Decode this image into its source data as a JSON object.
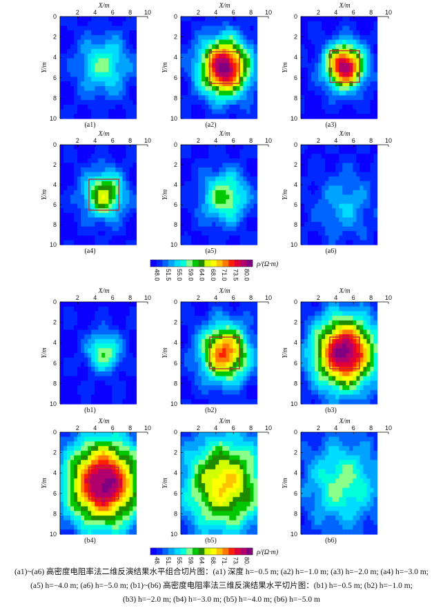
{
  "axis": {
    "x_label": "X/m",
    "y_label": "Y/m",
    "ticks_x": [
      "2",
      "4",
      "6",
      "8",
      "10"
    ],
    "ticks_y": [
      "0",
      "2",
      "4",
      "6",
      "8",
      "10"
    ]
  },
  "colorbar": {
    "label": "ρ/(Ω·m)",
    "tick_labels": [
      "48.0",
      "51.5",
      "55.0",
      "59.0",
      "64.0",
      "68.0",
      "71.0",
      "73.5",
      "80.0"
    ],
    "colors": [
      "#0b00ff",
      "#0028ff",
      "#0064ff",
      "#00a4ff",
      "#00dcff",
      "#00ffd8",
      "#8aff8a",
      "#00c800",
      "#1f8a00",
      "#d2ff00",
      "#ffff00",
      "#ffc400",
      "#ff7a00",
      "#ff2000",
      "#e0003a",
      "#b0006e",
      "#800080"
    ]
  },
  "panels": [
    {
      "label": "(a1)",
      "peak": 0.33,
      "cx": 5.0,
      "cy": 4.8,
      "spread": 2.0,
      "box": false,
      "axes_ticks": true
    },
    {
      "label": "(a2)",
      "peak": 1.0,
      "cx": 5.0,
      "cy": 5.0,
      "spread": 1.9,
      "box": true,
      "axes_ticks": true
    },
    {
      "label": "(a3)",
      "peak": 0.95,
      "cx": 5.0,
      "cy": 4.9,
      "spread": 1.5,
      "box": true,
      "axes_ticks": true
    },
    {
      "label": "(a4)",
      "peak": 0.55,
      "cx": 5.0,
      "cy": 5.0,
      "spread": 1.6,
      "box": true,
      "axes_ticks": true
    },
    {
      "label": "(a5)",
      "peak": 0.42,
      "cx": 5.0,
      "cy": 5.2,
      "spread": 1.8,
      "box": false,
      "axes_ticks": false
    },
    {
      "label": "(a6)",
      "peak": 0.2,
      "cx": 5.0,
      "cy": 6.0,
      "spread": 2.2,
      "box": false,
      "axes_ticks": false
    },
    {
      "label": "(b1)",
      "peak": 0.4,
      "cx": 5.0,
      "cy": 4.9,
      "spread": 1.3,
      "box": false,
      "axes_ticks": true
    },
    {
      "label": "(b2)",
      "peak": 0.78,
      "cx": 5.0,
      "cy": 5.0,
      "spread": 1.9,
      "box": true,
      "axes_ticks": true
    },
    {
      "label": "(b3)",
      "peak": 1.0,
      "cx": 5.0,
      "cy": 5.0,
      "spread": 2.4,
      "box": true,
      "axes_ticks": true
    },
    {
      "label": "(b4)",
      "peak": 1.0,
      "cx": 5.0,
      "cy": 5.0,
      "spread": 2.9,
      "box": true,
      "axes_ticks": true
    },
    {
      "label": "(b5)",
      "peak": 0.65,
      "cx": 5.0,
      "cy": 5.1,
      "spread": 3.2,
      "box": false,
      "axes_ticks": true
    },
    {
      "label": "(b6)",
      "peak": 0.35,
      "cx": 4.8,
      "cy": 5.0,
      "spread": 3.0,
      "box": false,
      "axes_ticks": true
    }
  ],
  "caption_lines": [
    "(a1)~(a6) 高密度电阻率法二维反演结果水平组合切片图：(a1) 深度 h=−0.5 m; (a2) h=−1.0 m; (a3) h=−2.0 m; (a4) h=−3.0 m;",
    "(a5) h=−4.0 m; (a6) h=−5.0 m; (b1)~(b6) 高密度电阻率法三维反演结果水平切片图：(b1) h=−0.5 m; (b2) h=−1.0 m;",
    "(b3) h=−2.0 m; (b4) h=−3.0 m; (b5) h=−4.0 m; (b6) h=−5.0 m"
  ]
}
